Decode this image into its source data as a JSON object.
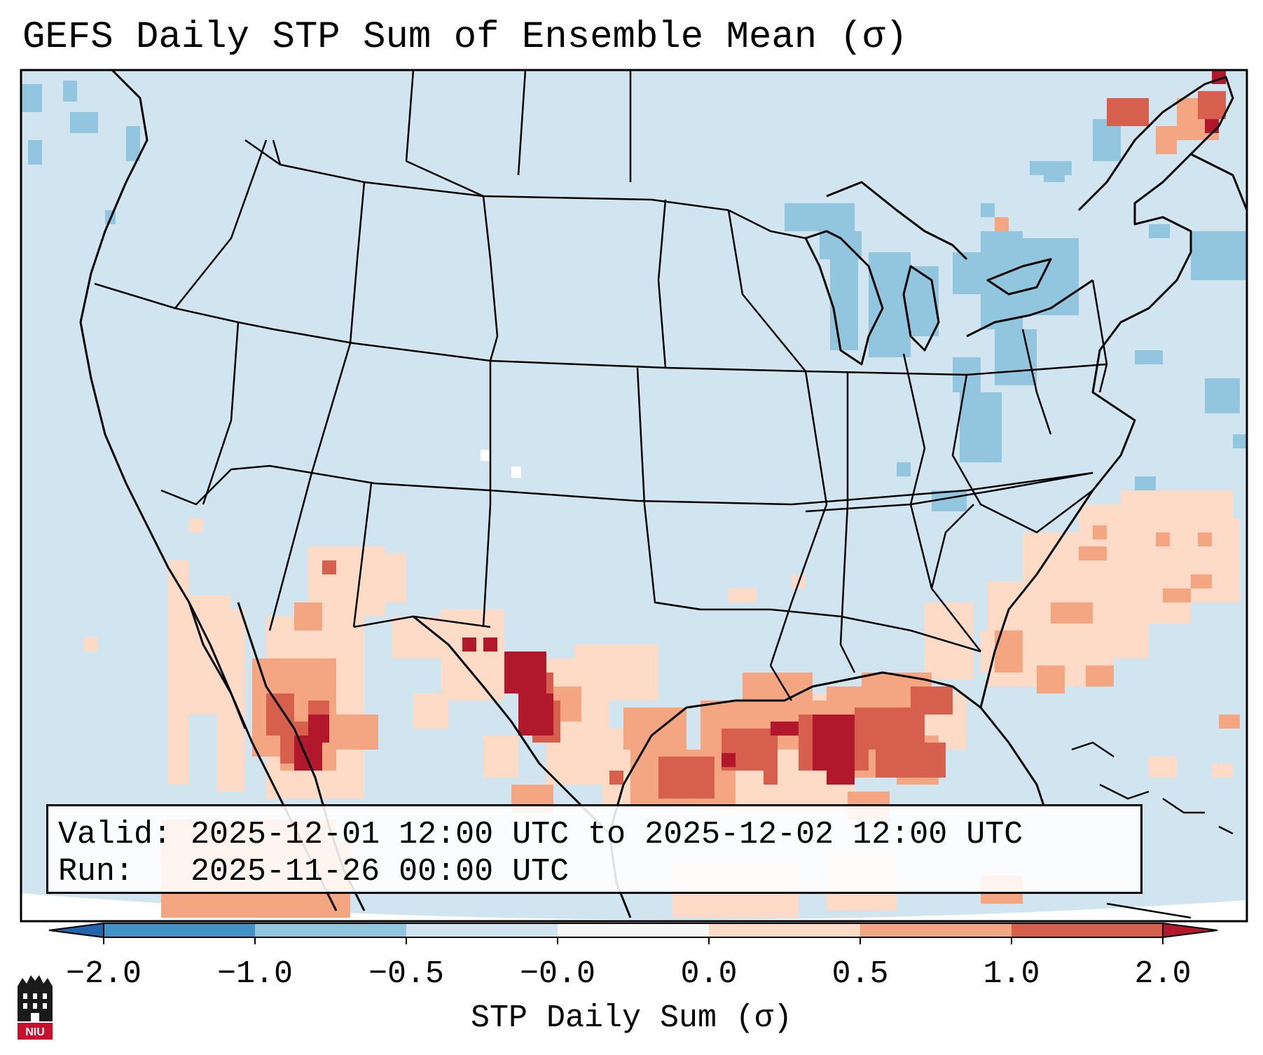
{
  "title": "GEFS Daily STP Sum of Ensemble Mean (σ)",
  "info": {
    "valid_line": "Valid: 2025-12-01 12:00 UTC to 2025-12-02 12:00 UTC",
    "run_line": "Run:   2025-11-26 00:00 UTC"
  },
  "colorbar": {
    "label": "STP Daily Sum (σ)",
    "ticks": [
      "−2.0",
      "−1.0",
      "−0.5",
      "−0.0",
      "0.0",
      "0.5",
      "1.0",
      "2.0"
    ],
    "colors": [
      "#4292c6",
      "#92c5de",
      "#d1e5f0",
      "#f7f7f7",
      "#fddbc7",
      "#f4a582",
      "#d6604d"
    ],
    "extend_low_color": "#2166ac",
    "extend_high_color": "#b2182b"
  },
  "field_colors": {
    "background": "#d1e5f0",
    "negative": "#92c5de",
    "positive_low": "#fddbc7",
    "positive_mid": "#f4a582",
    "positive_high": "#d6604d",
    "positive_max": "#b2182b"
  },
  "logo": {
    "text": "NIU",
    "color": "#c8102e"
  }
}
